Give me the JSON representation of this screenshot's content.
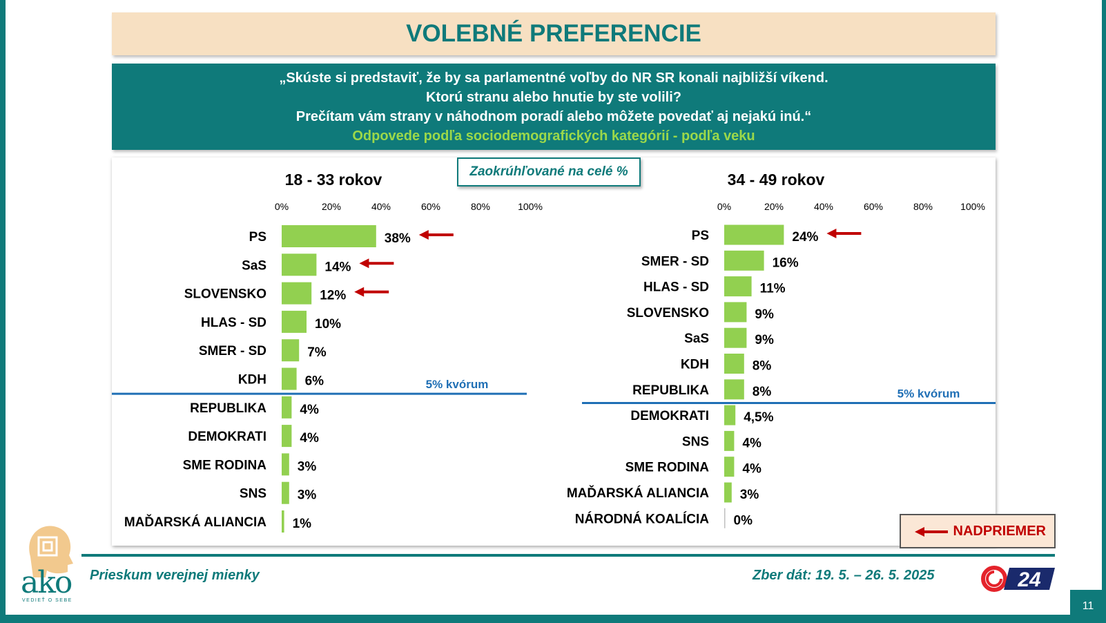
{
  "header": {
    "title": "VOLEBNÉ PREFERENCIE",
    "question_lines": [
      "„Skúste si predstaviť, že by sa parlamentné voľby do NR SR konali najbližší víkend.",
      "Ktorú stranu alebo hnutie by ste volili?",
      "Prečítam vám strany v náhodnom poradí alebo môžete povedať aj nejakú inú.“"
    ],
    "subtitle": "Odpovede podľa sociodemografických kategórií - podľa veku"
  },
  "note": "Zaokrúhľované na celé %",
  "legend": {
    "label": "NADPRIEMER"
  },
  "footer": {
    "survey": "Prieskum verejnej mienky",
    "dates": "Zber dát: 19. 5. – 26. 5. 2025",
    "brand": "ako",
    "brand_tagline": "VEDIEŤ O SEBE",
    "tv_brand": "24",
    "page_number": "11"
  },
  "colors": {
    "teal": "#0f7a7a",
    "bar": "#92d050",
    "arrow": "#c00000",
    "threshold": "#1f6fb5"
  },
  "chart_data": [
    {
      "type": "bar",
      "orientation": "horizontal",
      "title": "18 - 33 rokov",
      "x_ticks": [
        "0%",
        "20%",
        "40%",
        "60%",
        "80%",
        "100%"
      ],
      "xlim": [
        0,
        100
      ],
      "categories": [
        "PS",
        "SaS",
        "SLOVENSKO",
        "HLAS - SD",
        "SMER - SD",
        "KDH",
        "REPUBLIKA",
        "DEMOKRATI",
        "SME RODINA",
        "SNS",
        "MAĎARSKÁ ALIANCIA"
      ],
      "values": [
        38,
        14,
        12,
        10,
        7,
        6,
        4,
        4,
        3,
        3,
        1
      ],
      "labels": [
        "38%",
        "14%",
        "12%",
        "10%",
        "7%",
        "6%",
        "4%",
        "4%",
        "3%",
        "3%",
        "1%"
      ],
      "above_average": [
        "PS",
        "SaS",
        "SLOVENSKO"
      ],
      "threshold": {
        "label": "5% kvórum",
        "after_category": "KDH"
      }
    },
    {
      "type": "bar",
      "orientation": "horizontal",
      "title": "34 - 49 rokov",
      "x_ticks": [
        "0%",
        "20%",
        "40%",
        "60%",
        "80%",
        "100%"
      ],
      "xlim": [
        0,
        100
      ],
      "categories": [
        "PS",
        "SMER - SD",
        "HLAS - SD",
        "SLOVENSKO",
        "SaS",
        "KDH",
        "REPUBLIKA",
        "DEMOKRATI",
        "SNS",
        "SME RODINA",
        "MAĎARSKÁ ALIANCIA",
        "NÁRODNÁ KOALÍCIA"
      ],
      "values": [
        24,
        16,
        11,
        9,
        9,
        8,
        8,
        4.5,
        4,
        4,
        3,
        0
      ],
      "labels": [
        "24%",
        "16%",
        "11%",
        "9%",
        "9%",
        "8%",
        "8%",
        "4,5%",
        "4%",
        "4%",
        "3%",
        "0%"
      ],
      "above_average": [
        "PS"
      ],
      "threshold": {
        "label": "5% kvórum",
        "after_category": "REPUBLIKA"
      }
    }
  ]
}
